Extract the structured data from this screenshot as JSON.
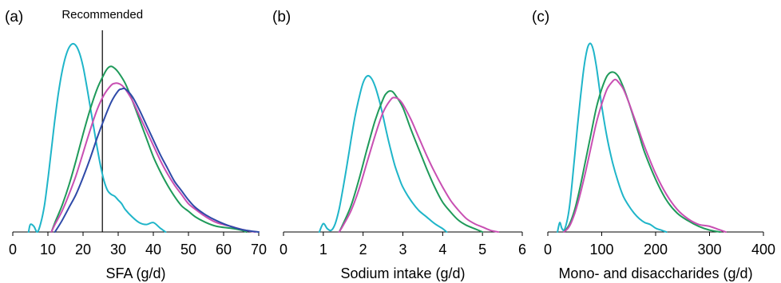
{
  "chart_data": [
    {
      "type": "line",
      "panel_label": "(a)",
      "xlabel": "SFA (g/d)",
      "ylabel": "",
      "xlim": [
        0,
        70
      ],
      "ylim": [
        0,
        1
      ],
      "xticks": [
        0,
        10,
        20,
        30,
        40,
        50,
        60,
        70
      ],
      "reference_line": {
        "x": 25.5,
        "label": "Recommended"
      },
      "series": [
        {
          "color": "#1fb5c9",
          "x": [
            4.5,
            5,
            6,
            7,
            8,
            9,
            10,
            11,
            12,
            13,
            14,
            15,
            16,
            17,
            18,
            19,
            20,
            21,
            22,
            23,
            24,
            25,
            26,
            27,
            28,
            29,
            30,
            31,
            32,
            34,
            36,
            38,
            40,
            42,
            43.5
          ],
          "y": [
            0.0,
            0.04,
            0.03,
            0.0,
            0.05,
            0.14,
            0.28,
            0.44,
            0.6,
            0.74,
            0.85,
            0.93,
            0.98,
            1.0,
            0.99,
            0.95,
            0.88,
            0.78,
            0.67,
            0.56,
            0.45,
            0.35,
            0.27,
            0.22,
            0.2,
            0.19,
            0.17,
            0.15,
            0.12,
            0.08,
            0.05,
            0.04,
            0.05,
            0.02,
            0.0
          ]
        },
        {
          "color": "#1f9a5a",
          "x": [
            11,
            12,
            14,
            16,
            18,
            20,
            22,
            24,
            26,
            27,
            28,
            29,
            30,
            32,
            34,
            36,
            38,
            40,
            42,
            44,
            46,
            48,
            50,
            52,
            55,
            58,
            62,
            65,
            66.5
          ],
          "y": [
            0.0,
            0.05,
            0.14,
            0.25,
            0.38,
            0.52,
            0.65,
            0.76,
            0.84,
            0.87,
            0.88,
            0.87,
            0.85,
            0.79,
            0.7,
            0.6,
            0.5,
            0.4,
            0.32,
            0.25,
            0.19,
            0.14,
            0.11,
            0.08,
            0.05,
            0.03,
            0.02,
            0.01,
            0.0
          ]
        },
        {
          "color": "#c84fb2",
          "x": [
            11,
            12,
            14,
            16,
            18,
            20,
            22,
            24,
            26,
            28,
            29,
            30,
            31,
            32,
            34,
            36,
            38,
            40,
            42,
            44,
            46,
            48,
            50,
            52,
            55,
            58,
            62,
            66,
            69
          ],
          "y": [
            0.0,
            0.04,
            0.11,
            0.2,
            0.3,
            0.42,
            0.54,
            0.65,
            0.73,
            0.78,
            0.79,
            0.79,
            0.78,
            0.76,
            0.7,
            0.62,
            0.54,
            0.46,
            0.38,
            0.31,
            0.25,
            0.2,
            0.15,
            0.12,
            0.08,
            0.05,
            0.03,
            0.01,
            0.0
          ]
        },
        {
          "color": "#2e4aa8",
          "x": [
            12,
            14,
            16,
            18,
            20,
            22,
            24,
            26,
            28,
            30,
            31,
            32,
            34,
            36,
            38,
            40,
            42,
            44,
            46,
            48,
            50,
            52,
            55,
            58,
            62,
            66,
            70
          ],
          "y": [
            0.0,
            0.06,
            0.13,
            0.2,
            0.29,
            0.39,
            0.5,
            0.6,
            0.69,
            0.75,
            0.76,
            0.76,
            0.72,
            0.65,
            0.57,
            0.49,
            0.41,
            0.34,
            0.27,
            0.22,
            0.17,
            0.13,
            0.09,
            0.06,
            0.03,
            0.01,
            0.0
          ]
        }
      ]
    },
    {
      "type": "line",
      "panel_label": "(b)",
      "xlabel": "Sodium intake (g/d)",
      "ylabel": "",
      "xlim": [
        0,
        6
      ],
      "ylim": [
        0,
        1
      ],
      "xticks": [
        0,
        1,
        2,
        3,
        4,
        5,
        6
      ],
      "series": [
        {
          "color": "#1fb5c9",
          "x": [
            0.9,
            1.0,
            1.1,
            1.2,
            1.3,
            1.4,
            1.5,
            1.6,
            1.7,
            1.8,
            1.9,
            2.0,
            2.1,
            2.2,
            2.3,
            2.4,
            2.5,
            2.6,
            2.7,
            2.8,
            2.9,
            3.0,
            3.2,
            3.4,
            3.6,
            3.8,
            4.0,
            4.1
          ],
          "y": [
            0.0,
            0.05,
            0.02,
            0.01,
            0.05,
            0.14,
            0.27,
            0.41,
            0.56,
            0.7,
            0.81,
            0.9,
            0.94,
            0.93,
            0.88,
            0.8,
            0.7,
            0.59,
            0.49,
            0.4,
            0.33,
            0.27,
            0.19,
            0.13,
            0.09,
            0.05,
            0.02,
            0.0
          ]
        },
        {
          "color": "#1f9a5a",
          "x": [
            1.4,
            1.5,
            1.7,
            1.9,
            2.1,
            2.3,
            2.5,
            2.6,
            2.7,
            2.8,
            3.0,
            3.2,
            3.4,
            3.6,
            3.8,
            4.0,
            4.2,
            4.4,
            4.6,
            4.8,
            5.0
          ],
          "y": [
            0.0,
            0.05,
            0.16,
            0.32,
            0.5,
            0.67,
            0.8,
            0.84,
            0.85,
            0.83,
            0.75,
            0.62,
            0.5,
            0.38,
            0.27,
            0.18,
            0.12,
            0.07,
            0.04,
            0.02,
            0.0
          ]
        },
        {
          "color": "#c84fb2",
          "x": [
            1.4,
            1.5,
            1.7,
            1.9,
            2.1,
            2.3,
            2.5,
            2.7,
            2.8,
            2.9,
            3.0,
            3.2,
            3.4,
            3.6,
            3.8,
            4.0,
            4.2,
            4.4,
            4.6,
            4.8,
            5.0,
            5.2,
            5.4
          ],
          "y": [
            0.0,
            0.04,
            0.13,
            0.26,
            0.42,
            0.58,
            0.72,
            0.8,
            0.81,
            0.8,
            0.77,
            0.68,
            0.57,
            0.46,
            0.36,
            0.27,
            0.19,
            0.13,
            0.08,
            0.05,
            0.03,
            0.01,
            0.0
          ]
        }
      ]
    },
    {
      "type": "line",
      "panel_label": "(c)",
      "xlabel": "Mono- and disaccharides (g/d)",
      "ylabel": "",
      "xlim": [
        0,
        400
      ],
      "ylim": [
        0,
        1
      ],
      "xticks": [
        0,
        100,
        200,
        300,
        400
      ],
      "series": [
        {
          "color": "#1fb5c9",
          "x": [
            18,
            22,
            26,
            30,
            35,
            40,
            45,
            50,
            55,
            60,
            65,
            70,
            75,
            80,
            85,
            90,
            95,
            100,
            110,
            120,
            130,
            140,
            150,
            160,
            170,
            180,
            190,
            200,
            210,
            220
          ],
          "y": [
            0.0,
            0.05,
            0.02,
            0.01,
            0.05,
            0.13,
            0.26,
            0.41,
            0.56,
            0.7,
            0.83,
            0.93,
            0.99,
            1.0,
            0.96,
            0.88,
            0.78,
            0.67,
            0.5,
            0.37,
            0.27,
            0.19,
            0.14,
            0.1,
            0.07,
            0.05,
            0.04,
            0.02,
            0.01,
            0.0
          ]
        },
        {
          "color": "#1f9a5a",
          "x": [
            30,
            40,
            50,
            60,
            70,
            80,
            90,
            100,
            110,
            120,
            130,
            140,
            150,
            160,
            170,
            180,
            200,
            220,
            240,
            260,
            280,
            300,
            320
          ],
          "y": [
            0.0,
            0.04,
            0.12,
            0.24,
            0.38,
            0.52,
            0.66,
            0.76,
            0.83,
            0.85,
            0.83,
            0.77,
            0.69,
            0.6,
            0.51,
            0.42,
            0.28,
            0.17,
            0.1,
            0.06,
            0.03,
            0.01,
            0.0
          ]
        },
        {
          "color": "#c84fb2",
          "x": [
            30,
            40,
            50,
            60,
            70,
            80,
            90,
            100,
            110,
            120,
            125,
            130,
            140,
            150,
            160,
            170,
            180,
            200,
            220,
            240,
            260,
            280,
            300,
            320,
            330
          ],
          "y": [
            0.0,
            0.03,
            0.1,
            0.2,
            0.32,
            0.45,
            0.58,
            0.68,
            0.76,
            0.8,
            0.81,
            0.8,
            0.76,
            0.69,
            0.61,
            0.53,
            0.45,
            0.31,
            0.2,
            0.12,
            0.07,
            0.04,
            0.03,
            0.01,
            0.0
          ]
        }
      ]
    }
  ]
}
